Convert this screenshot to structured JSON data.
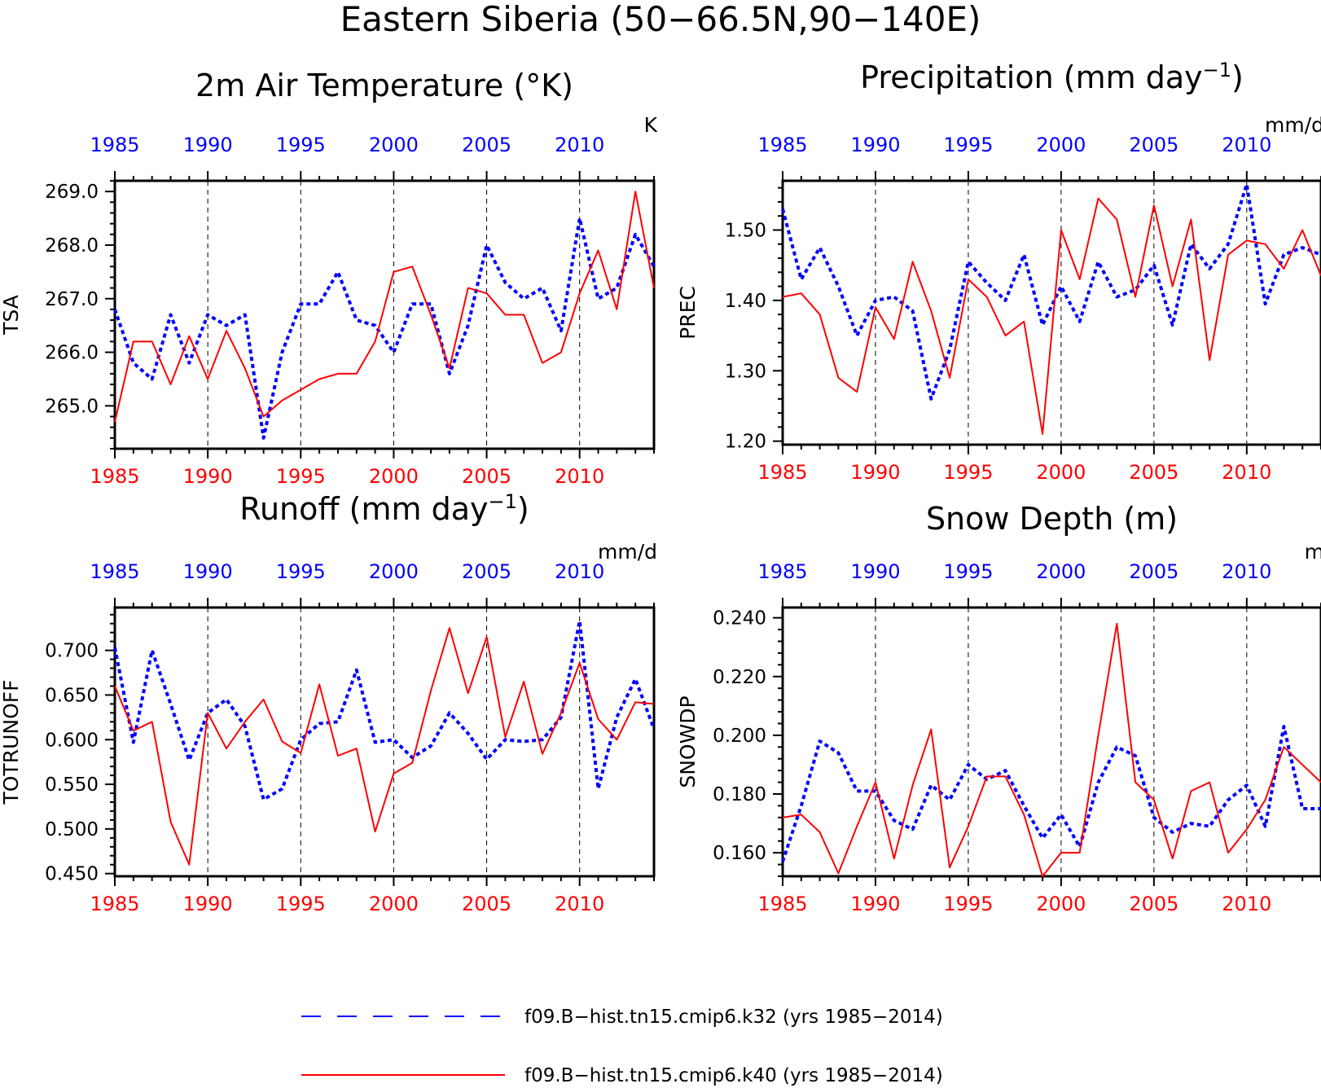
{
  "figure_title": "Eastern Siberia (50−66.5N,90−140E)",
  "colors": {
    "series1": "#0000ff",
    "series2": "#ff0000",
    "axis": "#000000",
    "grid": "#000000"
  },
  "legend": {
    "entries": [
      {
        "label": "f09.B−hist.tn15.cmip6.k32 (yrs 1985−2014)",
        "style": "dashed",
        "color": "#0000ff"
      },
      {
        "label": "f09.B−hist.tn15.cmip6.k40 (yrs 1985−2014)",
        "style": "solid",
        "color": "#ff0000"
      }
    ]
  },
  "chart_data": [
    {
      "type": "line",
      "title_main": "2m Air Temperature (°K)",
      "title_sup": "",
      "title_tail": "",
      "ylabel": "TSA",
      "units": "K",
      "xlim": [
        1985,
        2014
      ],
      "ylim": [
        264.2,
        269.2
      ],
      "yticks": [
        265.0,
        266.0,
        267.0,
        268.0,
        269.0
      ],
      "ytick_labels": [
        "265.0",
        "266.0",
        "267.0",
        "268.0",
        "269.0"
      ],
      "xticks": [
        1985,
        1990,
        1995,
        2000,
        2005,
        2010
      ],
      "xtick_labels": [
        "1985",
        "1990",
        "1995",
        "2000",
        "2005",
        "2010"
      ],
      "grid_x": [
        1990,
        1995,
        2000,
        2005,
        2010
      ],
      "x": [
        1985,
        1986,
        1987,
        1988,
        1989,
        1990,
        1991,
        1992,
        1993,
        1994,
        1995,
        1996,
        1997,
        1998,
        1999,
        2000,
        2001,
        2002,
        2003,
        2004,
        2005,
        2006,
        2007,
        2008,
        2009,
        2010,
        2011,
        2012,
        2013,
        2014
      ],
      "series": [
        {
          "values": [
            266.8,
            265.8,
            265.5,
            266.7,
            265.8,
            266.7,
            266.5,
            266.7,
            264.4,
            266.0,
            266.9,
            266.9,
            267.5,
            266.6,
            266.5,
            266.0,
            266.9,
            266.9,
            265.6,
            266.5,
            268.0,
            267.3,
            267.0,
            267.2,
            266.4,
            268.5,
            267.0,
            267.2,
            268.2,
            267.6
          ]
        },
        {
          "values": [
            264.7,
            266.2,
            266.2,
            265.4,
            266.3,
            265.5,
            266.4,
            265.7,
            264.8,
            265.1,
            265.3,
            265.5,
            265.6,
            265.6,
            266.2,
            267.5,
            267.6,
            266.7,
            265.7,
            267.2,
            267.1,
            266.7,
            266.7,
            265.8,
            266.0,
            267.1,
            267.9,
            266.8,
            269.0,
            267.2
          ]
        }
      ]
    },
    {
      "type": "line",
      "title_main": "Precipitation (mm day",
      "title_sup": "−1",
      "title_tail": ")",
      "ylabel": "PREC",
      "units": "mm/d",
      "xlim": [
        1985,
        2014
      ],
      "ylim": [
        1.195,
        1.57
      ],
      "yticks": [
        1.2,
        1.3,
        1.4,
        1.5
      ],
      "ytick_labels": [
        "1.20",
        "1.30",
        "1.40",
        "1.50"
      ],
      "xticks": [
        1985,
        1990,
        1995,
        2000,
        2005,
        2010
      ],
      "xtick_labels": [
        "1985",
        "1990",
        "1995",
        "2000",
        "2005",
        "2010"
      ],
      "grid_x": [
        1990,
        1995,
        2000,
        2005,
        2010
      ],
      "x": [
        1985,
        1986,
        1987,
        1988,
        1989,
        1990,
        1991,
        1992,
        1993,
        1994,
        1995,
        1996,
        1997,
        1998,
        1999,
        2000,
        2001,
        2002,
        2003,
        2004,
        2005,
        2006,
        2007,
        2008,
        2009,
        2010,
        2011,
        2012,
        2013,
        2014
      ],
      "series": [
        {
          "values": [
            1.53,
            1.43,
            1.475,
            1.42,
            1.35,
            1.4,
            1.405,
            1.385,
            1.26,
            1.33,
            1.455,
            1.425,
            1.4,
            1.465,
            1.365,
            1.42,
            1.37,
            1.455,
            1.405,
            1.415,
            1.45,
            1.365,
            1.48,
            1.445,
            1.48,
            1.565,
            1.395,
            1.465,
            1.475,
            1.465
          ]
        },
        {
          "values": [
            1.405,
            1.41,
            1.38,
            1.29,
            1.27,
            1.39,
            1.345,
            1.455,
            1.385,
            1.29,
            1.43,
            1.405,
            1.35,
            1.37,
            1.21,
            1.5,
            1.43,
            1.545,
            1.515,
            1.405,
            1.535,
            1.42,
            1.515,
            1.315,
            1.465,
            1.485,
            1.48,
            1.445,
            1.5,
            1.435
          ]
        }
      ]
    },
    {
      "type": "line",
      "title_main": "Runoff (mm day",
      "title_sup": "−1",
      "title_tail": ")",
      "ylabel": "TOTRUNOFF",
      "units": "mm/d",
      "xlim": [
        1985,
        2014
      ],
      "ylim": [
        0.447,
        0.748
      ],
      "yticks": [
        0.45,
        0.5,
        0.55,
        0.6,
        0.65,
        0.7
      ],
      "ytick_labels": [
        "0.450",
        "0.500",
        "0.550",
        "0.600",
        "0.650",
        "0.700"
      ],
      "xticks": [
        1985,
        1990,
        1995,
        2000,
        2005,
        2010
      ],
      "xtick_labels": [
        "1985",
        "1990",
        "1995",
        "2000",
        "2005",
        "2010"
      ],
      "grid_x": [
        1990,
        1995,
        2000,
        2005,
        2010
      ],
      "x": [
        1985,
        1986,
        1987,
        1988,
        1989,
        1990,
        1991,
        1992,
        1993,
        1994,
        1995,
        1996,
        1997,
        1998,
        1999,
        2000,
        2001,
        2002,
        2003,
        2004,
        2005,
        2006,
        2007,
        2008,
        2009,
        2010,
        2011,
        2012,
        2013,
        2014
      ],
      "series": [
        {
          "values": [
            0.703,
            0.597,
            0.7,
            0.64,
            0.577,
            0.63,
            0.645,
            0.615,
            0.533,
            0.545,
            0.6,
            0.618,
            0.62,
            0.678,
            0.597,
            0.6,
            0.58,
            0.593,
            0.63,
            0.607,
            0.578,
            0.6,
            0.598,
            0.6,
            0.625,
            0.733,
            0.545,
            0.625,
            0.668,
            0.612
          ]
        },
        {
          "values": [
            0.66,
            0.61,
            0.62,
            0.508,
            0.46,
            0.63,
            0.59,
            0.62,
            0.645,
            0.598,
            0.585,
            0.662,
            0.582,
            0.59,
            0.497,
            0.562,
            0.574,
            0.655,
            0.725,
            0.652,
            0.715,
            0.603,
            0.665,
            0.584,
            0.63,
            0.686,
            0.623,
            0.6,
            0.642,
            0.64
          ]
        }
      ]
    },
    {
      "type": "line",
      "title_main": "Snow Depth (m)",
      "title_sup": "",
      "title_tail": "",
      "ylabel": "SNOWDP",
      "units": "m",
      "xlim": [
        1985,
        2014
      ],
      "ylim": [
        0.152,
        0.2435
      ],
      "yticks": [
        0.16,
        0.18,
        0.2,
        0.22,
        0.24
      ],
      "ytick_labels": [
        "0.160",
        "0.180",
        "0.200",
        "0.220",
        "0.240"
      ],
      "xticks": [
        1985,
        1990,
        1995,
        2000,
        2005,
        2010
      ],
      "xtick_labels": [
        "1985",
        "1990",
        "1995",
        "2000",
        "2005",
        "2010"
      ],
      "grid_x": [
        1990,
        1995,
        2000,
        2005,
        2010
      ],
      "x": [
        1985,
        1986,
        1987,
        1988,
        1989,
        1990,
        1991,
        1992,
        1993,
        1994,
        1995,
        1996,
        1997,
        1998,
        1999,
        2000,
        2001,
        2002,
        2003,
        2004,
        2005,
        2006,
        2007,
        2008,
        2009,
        2010,
        2011,
        2012,
        2013,
        2014
      ],
      "series": [
        {
          "values": [
            0.157,
            0.176,
            0.198,
            0.194,
            0.181,
            0.181,
            0.171,
            0.168,
            0.183,
            0.178,
            0.19,
            0.185,
            0.188,
            0.176,
            0.165,
            0.173,
            0.162,
            0.184,
            0.196,
            0.193,
            0.172,
            0.167,
            0.17,
            0.169,
            0.178,
            0.183,
            0.169,
            0.203,
            0.175,
            0.175
          ]
        },
        {
          "values": [
            0.172,
            0.173,
            0.167,
            0.153,
            0.169,
            0.184,
            0.158,
            0.183,
            0.202,
            0.155,
            0.169,
            0.186,
            0.186,
            0.173,
            0.152,
            0.16,
            0.16,
            0.2,
            0.238,
            0.184,
            0.178,
            0.158,
            0.181,
            0.184,
            0.16,
            0.168,
            0.178,
            0.196,
            0.19,
            0.184
          ]
        }
      ]
    }
  ]
}
